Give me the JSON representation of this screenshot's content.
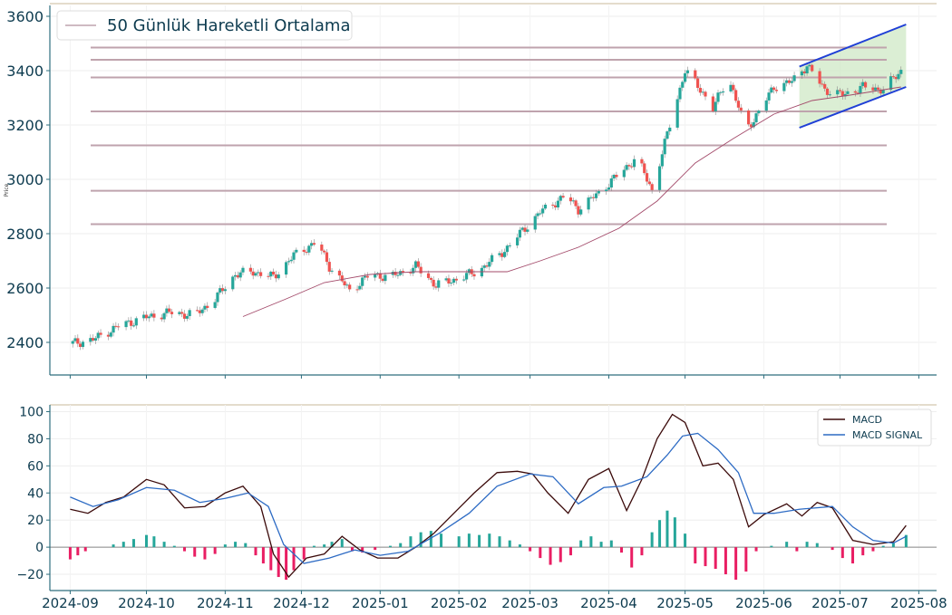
{
  "chart_data": [
    {
      "type": "candlestick",
      "ylabel": "Price",
      "ylim": [
        2280,
        3640
      ],
      "yticks": [
        2400,
        2600,
        2800,
        3000,
        3200,
        3400,
        3600
      ],
      "legend": {
        "placement": "top-left",
        "items": [
          {
            "label": "50 Günlük Hareketli Ortalama",
            "color": "#a34a6a"
          }
        ]
      },
      "grid": true,
      "colors": {
        "up": "#26a69a",
        "down": "#ef5350",
        "ma": "#a34a6a",
        "level": "#bfa3ad",
        "channel": "#1f3fd6",
        "channel_fill": "#cfe8c5",
        "axis": "#2e6e7e",
        "text": "#0d3b4f"
      },
      "horizontal_levels": [
        3485,
        3440,
        3375,
        3250,
        3125,
        2958,
        2835
      ],
      "price_path": [
        [
          "2024-09-01",
          2395
        ],
        [
          "2024-09-10",
          2410
        ],
        [
          "2024-09-20",
          2460
        ],
        [
          "2024-09-30",
          2490
        ],
        [
          "2024-10-10",
          2510
        ],
        [
          "2024-10-20",
          2500
        ],
        [
          "2024-10-28",
          2560
        ],
        [
          "2024-11-05",
          2650
        ],
        [
          "2024-11-12",
          2660
        ],
        [
          "2024-11-20",
          2640
        ],
        [
          "2024-11-28",
          2720
        ],
        [
          "2024-12-07",
          2770
        ],
        [
          "2024-12-12",
          2680
        ],
        [
          "2024-12-20",
          2590
        ],
        [
          "2024-12-28",
          2650
        ],
        [
          "2025-01-05",
          2640
        ],
        [
          "2025-01-15",
          2680
        ],
        [
          "2025-01-23",
          2610
        ],
        [
          "2025-01-30",
          2630
        ],
        [
          "2025-02-08",
          2660
        ],
        [
          "2025-02-18",
          2730
        ],
        [
          "2025-02-25",
          2800
        ],
        [
          "2025-03-05",
          2880
        ],
        [
          "2025-03-15",
          2940
        ],
        [
          "2025-03-20",
          2890
        ],
        [
          "2025-03-28",
          2950
        ],
        [
          "2025-04-05",
          3020
        ],
        [
          "2025-04-12",
          3080
        ],
        [
          "2025-04-18",
          2960
        ],
        [
          "2025-04-25",
          3200
        ],
        [
          "2025-05-01",
          3400
        ],
        [
          "2025-05-08",
          3320
        ],
        [
          "2025-05-12",
          3260
        ],
        [
          "2025-05-18",
          3380
        ],
        [
          "2025-05-25",
          3180
        ],
        [
          "2025-05-30",
          3250
        ],
        [
          "2025-06-05",
          3340
        ],
        [
          "2025-06-12",
          3360
        ],
        [
          "2025-06-18",
          3420
        ],
        [
          "2025-06-25",
          3330
        ],
        [
          "2025-07-02",
          3310
        ],
        [
          "2025-07-10",
          3340
        ],
        [
          "2025-07-18",
          3330
        ],
        [
          "2025-07-25",
          3400
        ]
      ],
      "moving_average_50": [
        [
          "2024-11-08",
          2495
        ],
        [
          "2024-11-25",
          2560
        ],
        [
          "2024-12-10",
          2620
        ],
        [
          "2024-12-28",
          2650
        ],
        [
          "2025-01-15",
          2660
        ],
        [
          "2025-02-05",
          2660
        ],
        [
          "2025-02-20",
          2660
        ],
        [
          "2025-03-05",
          2700
        ],
        [
          "2025-03-20",
          2750
        ],
        [
          "2025-04-05",
          2820
        ],
        [
          "2025-04-20",
          2920
        ],
        [
          "2025-05-05",
          3060
        ],
        [
          "2025-05-20",
          3150
        ],
        [
          "2025-06-05",
          3240
        ],
        [
          "2025-06-20",
          3290
        ],
        [
          "2025-07-05",
          3310
        ],
        [
          "2025-07-25",
          3340
        ]
      ],
      "channel": {
        "upper": [
          [
            "2025-06-15",
            3415
          ],
          [
            "2025-07-27",
            3570
          ]
        ],
        "lower": [
          [
            "2025-06-15",
            3190
          ],
          [
            "2025-07-27",
            3340
          ]
        ]
      }
    },
    {
      "type": "line+bar",
      "ylim": [
        -32,
        105
      ],
      "yticks": [
        -20,
        0,
        20,
        40,
        60,
        80,
        100
      ],
      "xticks": [
        "2024-09",
        "2024-10",
        "2024-11",
        "2024-12",
        "2025-01",
        "2025-02",
        "2025-03",
        "2025-04",
        "2025-05",
        "2025-06",
        "2025-07",
        "2025-08"
      ],
      "legend": {
        "placement": "top-right"
      },
      "grid": true,
      "series": [
        {
          "name": "MACD",
          "color": "#3b0a0a",
          "points": [
            [
              "2024-09-01",
              28
            ],
            [
              "2024-09-08",
              25
            ],
            [
              "2024-09-15",
              33
            ],
            [
              "2024-09-22",
              37
            ],
            [
              "2024-10-01",
              50
            ],
            [
              "2024-10-08",
              46
            ],
            [
              "2024-10-16",
              29
            ],
            [
              "2024-10-24",
              30
            ],
            [
              "2024-11-01",
              40
            ],
            [
              "2024-11-08",
              45
            ],
            [
              "2024-11-15",
              30
            ],
            [
              "2024-11-20",
              -5
            ],
            [
              "2024-11-26",
              -22
            ],
            [
              "2024-12-03",
              -8
            ],
            [
              "2024-12-10",
              -5
            ],
            [
              "2024-12-17",
              8
            ],
            [
              "2024-12-24",
              -2
            ],
            [
              "2024-12-31",
              -8
            ],
            [
              "2025-01-08",
              -8
            ],
            [
              "2025-01-15",
              0
            ],
            [
              "2025-01-22",
              10
            ],
            [
              "2025-01-30",
              25
            ],
            [
              "2025-02-07",
              40
            ],
            [
              "2025-02-16",
              55
            ],
            [
              "2025-02-24",
              56
            ],
            [
              "2025-03-02",
              54
            ],
            [
              "2025-03-08",
              40
            ],
            [
              "2025-03-16",
              25
            ],
            [
              "2025-03-24",
              50
            ],
            [
              "2025-04-01",
              58
            ],
            [
              "2025-04-08",
              27
            ],
            [
              "2025-04-14",
              50
            ],
            [
              "2025-04-20",
              80
            ],
            [
              "2025-04-26",
              98
            ],
            [
              "2025-05-01",
              92
            ],
            [
              "2025-05-08",
              60
            ],
            [
              "2025-05-14",
              62
            ],
            [
              "2025-05-20",
              50
            ],
            [
              "2025-05-26",
              15
            ],
            [
              "2025-06-01",
              24
            ],
            [
              "2025-06-10",
              32
            ],
            [
              "2025-06-16",
              23
            ],
            [
              "2025-06-22",
              33
            ],
            [
              "2025-06-28",
              29
            ],
            [
              "2025-07-06",
              5
            ],
            [
              "2025-07-14",
              2
            ],
            [
              "2025-07-22",
              4
            ],
            [
              "2025-07-27",
              16
            ]
          ]
        },
        {
          "name": "MACD SIGNAL",
          "color": "#2d6bc4",
          "points": [
            [
              "2024-09-01",
              37
            ],
            [
              "2024-09-10",
              30
            ],
            [
              "2024-09-20",
              35
            ],
            [
              "2024-10-01",
              44
            ],
            [
              "2024-10-12",
              42
            ],
            [
              "2024-10-22",
              33
            ],
            [
              "2024-11-01",
              36
            ],
            [
              "2024-11-10",
              40
            ],
            [
              "2024-11-18",
              30
            ],
            [
              "2024-11-24",
              2
            ],
            [
              "2024-12-02",
              -12
            ],
            [
              "2024-12-12",
              -8
            ],
            [
              "2024-12-22",
              -2
            ],
            [
              "2025-01-01",
              -6
            ],
            [
              "2025-01-12",
              -3
            ],
            [
              "2025-01-24",
              10
            ],
            [
              "2025-02-05",
              25
            ],
            [
              "2025-02-16",
              45
            ],
            [
              "2025-03-01",
              54
            ],
            [
              "2025-03-10",
              52
            ],
            [
              "2025-03-20",
              32
            ],
            [
              "2025-03-30",
              44
            ],
            [
              "2025-04-06",
              45
            ],
            [
              "2025-04-16",
              52
            ],
            [
              "2025-04-24",
              68
            ],
            [
              "2025-04-30",
              82
            ],
            [
              "2025-05-06",
              84
            ],
            [
              "2025-05-14",
              72
            ],
            [
              "2025-05-22",
              55
            ],
            [
              "2025-05-28",
              25
            ],
            [
              "2025-06-05",
              25
            ],
            [
              "2025-06-15",
              28
            ],
            [
              "2025-06-28",
              30
            ],
            [
              "2025-07-06",
              15
            ],
            [
              "2025-07-14",
              5
            ],
            [
              "2025-07-22",
              3
            ],
            [
              "2025-07-27",
              8
            ]
          ]
        }
      ],
      "histogram": {
        "positive_color": "#26a69a",
        "negative_color": "#e91e63",
        "bars": [
          [
            "2024-09-01",
            -9
          ],
          [
            "2024-09-04",
            -6
          ],
          [
            "2024-09-07",
            -3
          ],
          [
            "2024-09-18",
            2
          ],
          [
            "2024-09-22",
            4
          ],
          [
            "2024-09-26",
            6
          ],
          [
            "2024-10-01",
            9
          ],
          [
            "2024-10-04",
            8
          ],
          [
            "2024-10-08",
            4
          ],
          [
            "2024-10-12",
            1
          ],
          [
            "2024-10-16",
            -3
          ],
          [
            "2024-10-20",
            -7
          ],
          [
            "2024-10-24",
            -9
          ],
          [
            "2024-10-28",
            -5
          ],
          [
            "2024-11-01",
            2
          ],
          [
            "2024-11-05",
            4
          ],
          [
            "2024-11-09",
            3
          ],
          [
            "2024-11-13",
            -6
          ],
          [
            "2024-11-16",
            -12
          ],
          [
            "2024-11-19",
            -17
          ],
          [
            "2024-11-22",
            -22
          ],
          [
            "2024-11-25",
            -24
          ],
          [
            "2024-11-28",
            -17
          ],
          [
            "2024-12-02",
            -9
          ],
          [
            "2024-12-06",
            1
          ],
          [
            "2024-12-10",
            2
          ],
          [
            "2024-12-13",
            4
          ],
          [
            "2024-12-17",
            6
          ],
          [
            "2024-12-21",
            -3
          ],
          [
            "2024-12-25",
            -4
          ],
          [
            "2024-12-30",
            -2
          ],
          [
            "2025-01-05",
            1
          ],
          [
            "2025-01-09",
            3
          ],
          [
            "2025-01-13",
            8
          ],
          [
            "2025-01-17",
            11
          ],
          [
            "2025-01-21",
            12
          ],
          [
            "2025-01-25",
            10
          ],
          [
            "2025-02-01",
            8
          ],
          [
            "2025-02-05",
            10
          ],
          [
            "2025-02-09",
            9
          ],
          [
            "2025-02-13",
            10
          ],
          [
            "2025-02-17",
            8
          ],
          [
            "2025-02-21",
            5
          ],
          [
            "2025-02-25",
            2
          ],
          [
            "2025-03-01",
            -3
          ],
          [
            "2025-03-05",
            -8
          ],
          [
            "2025-03-09",
            -13
          ],
          [
            "2025-03-13",
            -11
          ],
          [
            "2025-03-17",
            -6
          ],
          [
            "2025-03-21",
            5
          ],
          [
            "2025-03-25",
            8
          ],
          [
            "2025-03-29",
            4
          ],
          [
            "2025-04-02",
            5
          ],
          [
            "2025-04-06",
            -4
          ],
          [
            "2025-04-10",
            -15
          ],
          [
            "2025-04-14",
            -6
          ],
          [
            "2025-04-18",
            11
          ],
          [
            "2025-04-21",
            20
          ],
          [
            "2025-04-24",
            27
          ],
          [
            "2025-04-27",
            22
          ],
          [
            "2025-05-01",
            10
          ],
          [
            "2025-05-05",
            -12
          ],
          [
            "2025-05-09",
            -14
          ],
          [
            "2025-05-13",
            -16
          ],
          [
            "2025-05-17",
            -20
          ],
          [
            "2025-05-21",
            -24
          ],
          [
            "2025-05-25",
            -18
          ],
          [
            "2025-05-29",
            -3
          ],
          [
            "2025-06-04",
            1
          ],
          [
            "2025-06-10",
            4
          ],
          [
            "2025-06-14",
            -3
          ],
          [
            "2025-06-18",
            4
          ],
          [
            "2025-06-22",
            3
          ],
          [
            "2025-06-28",
            -2
          ],
          [
            "2025-07-02",
            -8
          ],
          [
            "2025-07-06",
            -12
          ],
          [
            "2025-07-10",
            -6
          ],
          [
            "2025-07-14",
            -3
          ],
          [
            "2025-07-18",
            1
          ],
          [
            "2025-07-22",
            3
          ],
          [
            "2025-07-27",
            9
          ]
        ]
      }
    }
  ]
}
